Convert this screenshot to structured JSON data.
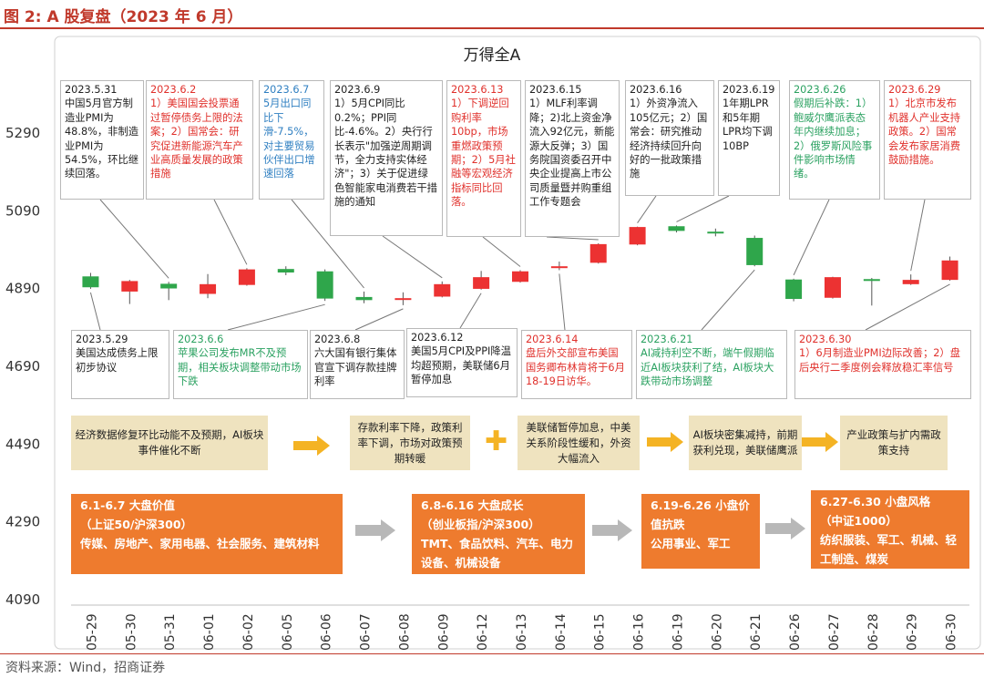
{
  "figure_title": "图 2:  A 股复盘（2023 年 6 月）",
  "source": "资料来源：Wind，招商证券",
  "colors": {
    "up": "#ec3232",
    "down": "#2fa64b",
    "accent_red": "#c0392b",
    "note_red": "#e0302b",
    "note_blue": "#2f7fc1",
    "note_green": "#2aa160",
    "beige": "#efe3bf",
    "orange": "#ee7b2e",
    "arrow_yellow": "#f4b324",
    "arrow_gray": "#b8b8b8"
  },
  "chart_data": {
    "type": "candlestick",
    "title": "万得全A",
    "ylim": [
      4090,
      5290
    ],
    "y_ticks": [
      5290,
      5090,
      4890,
      4690,
      4490,
      4290,
      4090
    ],
    "categories": [
      "05-29",
      "05-30",
      "05-31",
      "06-01",
      "06-02",
      "06-05",
      "06-06",
      "06-07",
      "06-08",
      "06-09",
      "06-12",
      "06-13",
      "06-14",
      "06-15",
      "06-16",
      "06-19",
      "06-20",
      "06-21",
      "06-26",
      "06-27",
      "06-28",
      "06-29",
      "06-30"
    ],
    "ohlc": [
      {
        "date": "05-29",
        "open": 4919,
        "high": 4928,
        "low": 4887,
        "close": 4891
      },
      {
        "date": "05-30",
        "open": 4880,
        "high": 4910,
        "low": 4848,
        "close": 4907
      },
      {
        "date": "05-31",
        "open": 4900,
        "high": 4905,
        "low": 4858,
        "close": 4888
      },
      {
        "date": "06-01",
        "open": 4874,
        "high": 4925,
        "low": 4863,
        "close": 4899
      },
      {
        "date": "06-02",
        "open": 4897,
        "high": 4940,
        "low": 4895,
        "close": 4937
      },
      {
        "date": "06-05",
        "open": 4938,
        "high": 4945,
        "low": 4922,
        "close": 4929
      },
      {
        "date": "06-06",
        "open": 4932,
        "high": 4937,
        "low": 4856,
        "close": 4862
      },
      {
        "date": "06-07",
        "open": 4866,
        "high": 4880,
        "low": 4850,
        "close": 4858
      },
      {
        "date": "06-08",
        "open": 4860,
        "high": 4878,
        "low": 4845,
        "close": 4863
      },
      {
        "date": "06-09",
        "open": 4867,
        "high": 4906,
        "low": 4865,
        "close": 4899
      },
      {
        "date": "06-12",
        "open": 4887,
        "high": 4933,
        "low": 4885,
        "close": 4917
      },
      {
        "date": "06-13",
        "open": 4905,
        "high": 4935,
        "low": 4903,
        "close": 4932
      },
      {
        "date": "06-14",
        "open": 4941,
        "high": 4957,
        "low": 4935,
        "close": 4945
      },
      {
        "date": "06-15",
        "open": 4954,
        "high": 5004,
        "low": 4952,
        "close": 5002
      },
      {
        "date": "06-16",
        "open": 5001,
        "high": 5047,
        "low": 4999,
        "close": 5046
      },
      {
        "date": "06-19",
        "open": 5048,
        "high": 5050,
        "low": 5032,
        "close": 5036
      },
      {
        "date": "06-20",
        "open": 5034,
        "high": 5042,
        "low": 5022,
        "close": 5032
      },
      {
        "date": "06-21",
        "open": 5018,
        "high": 5024,
        "low": 4945,
        "close": 4948
      },
      {
        "date": "06-26",
        "open": 4911,
        "high": 4913,
        "low": 4855,
        "close": 4861
      },
      {
        "date": "06-27",
        "open": 4864,
        "high": 4918,
        "low": 4862,
        "close": 4917
      },
      {
        "date": "06-28",
        "open": 4912,
        "high": 4915,
        "low": 4844,
        "close": 4908
      },
      {
        "date": "06-29",
        "open": 4899,
        "high": 4924,
        "low": 4897,
        "close": 4910
      },
      {
        "date": "06-30",
        "open": 4910,
        "high": 4970,
        "low": 4908,
        "close": 4960
      }
    ]
  },
  "notes_top": [
    {
      "date": "2023.5.31",
      "text": "中国5月官方制造业PMI为48.8%，非制造业PMI为54.5%，环比继续回落。",
      "color": "black"
    },
    {
      "date": "2023.6.2",
      "text": "1）美国国会投票通过暂停债务上限的法案；2）国常会：研究促进新能源汽车产业高质量发展的政策措施",
      "color": "red"
    },
    {
      "date": "2023.6.7",
      "text": "5月出口同比下滑-7.5%，对主要贸易伙伴出口增速回落",
      "color": "blue"
    },
    {
      "date": "2023.6.9",
      "text": "1）5月CPI同比0.2%；PPI同比-4.6%。2）央行行长表示\"加强逆周期调节，全力支持实体经济\"；3）关于促进绿色智能家电消费若干措施的通知",
      "color": "black"
    },
    {
      "date": "2023.6.13",
      "text": "1）下调逆回购利率10bp，市场重燃政策预期；2）5月社融等宏观经济指标同比回落。",
      "color": "red"
    },
    {
      "date": "2023.6.15",
      "text": "1）MLF利率调降；2)北上资金净流入92亿元，新能源大反弹；3）国务院国资委召开中央企业提高上市公司质量暨并购重组工作专题会",
      "color": "black"
    },
    {
      "date": "2023.6.16",
      "text": "1）外资净流入105亿元；2）国常会：研究推动经济持续回升向好的一批政策措施",
      "color": "black"
    },
    {
      "date": "2023.6.19",
      "text": "1年期LPR和5年期LPR均下调10BP",
      "color": "black"
    },
    {
      "date": "2023.6.26",
      "text": "假期后补跌：1）鲍威尔鹰派表态年内继续加息；2）俄罗斯风险事件影响市场情绪。",
      "color": "green"
    },
    {
      "date": "2023.6.29",
      "text": "1）北京市发布机器人产业支持政策。2）国常会发布家居消费鼓励措施。",
      "color": "red"
    }
  ],
  "notes_bottom": [
    {
      "date": "2023.5.29",
      "text": "美国达成债务上限初步协议",
      "color": "black"
    },
    {
      "date": "2023.6.6",
      "text": "苹果公司发布MR不及预期，相关板块调整带动市场下跌",
      "color": "green"
    },
    {
      "date": "2023.6.8",
      "text": "六大国有银行集体官宣下调存款挂牌利率",
      "color": "black"
    },
    {
      "date": "2023.6.12",
      "text": "美国5月CPI及PPI降温均超预期，美联储6月暂停加息",
      "color": "black"
    },
    {
      "date": "2023.6.14",
      "text": "盘后外交部宣布美国国务卿布林肯将于6月18-19日访华。",
      "color": "red"
    },
    {
      "date": "2023.6.21",
      "text": "AI减持利空不断，端午假期临近AI板块获利了结，AI板块大跌带动市场调整",
      "color": "green"
    },
    {
      "date": "2023.6.30",
      "text": "1）6月制造业PMI边际改善；2）盘后央行二季度例会释放稳汇率信号",
      "color": "red"
    }
  ],
  "drivers": [
    "经济数据修复环比动能不及预期，AI板块事件催化不断",
    "存款利率下降，政策利率下调，市场对政策预期转暖",
    "美联储暂停加息，中美关系阶段性缓和，外资大幅流入",
    "AI板块密集减持，前期获利兑现，美联储鹰派",
    "产业政策与扩内需政策支持"
  ],
  "styles": [
    {
      "title": "6.1-6.7 大盘价值",
      "index": "（上证50/沪深300）",
      "sectors": "传媒、房地产、家用电器、社会服务、建筑材料"
    },
    {
      "title": "6.8-6.16 大盘成长",
      "index": "（创业板指/沪深300）",
      "sectors": "TMT、食品饮料、汽车、电力设备、机械设备"
    },
    {
      "title": "6.19-6.26 小盘价值抗跌",
      "index": "",
      "sectors": "公用事业、军工"
    },
    {
      "title": "6.27-6.30 小盘风格",
      "index": "（中证1000）",
      "sectors": "纺织服装、军工、机械、轻工制造、煤炭"
    }
  ]
}
